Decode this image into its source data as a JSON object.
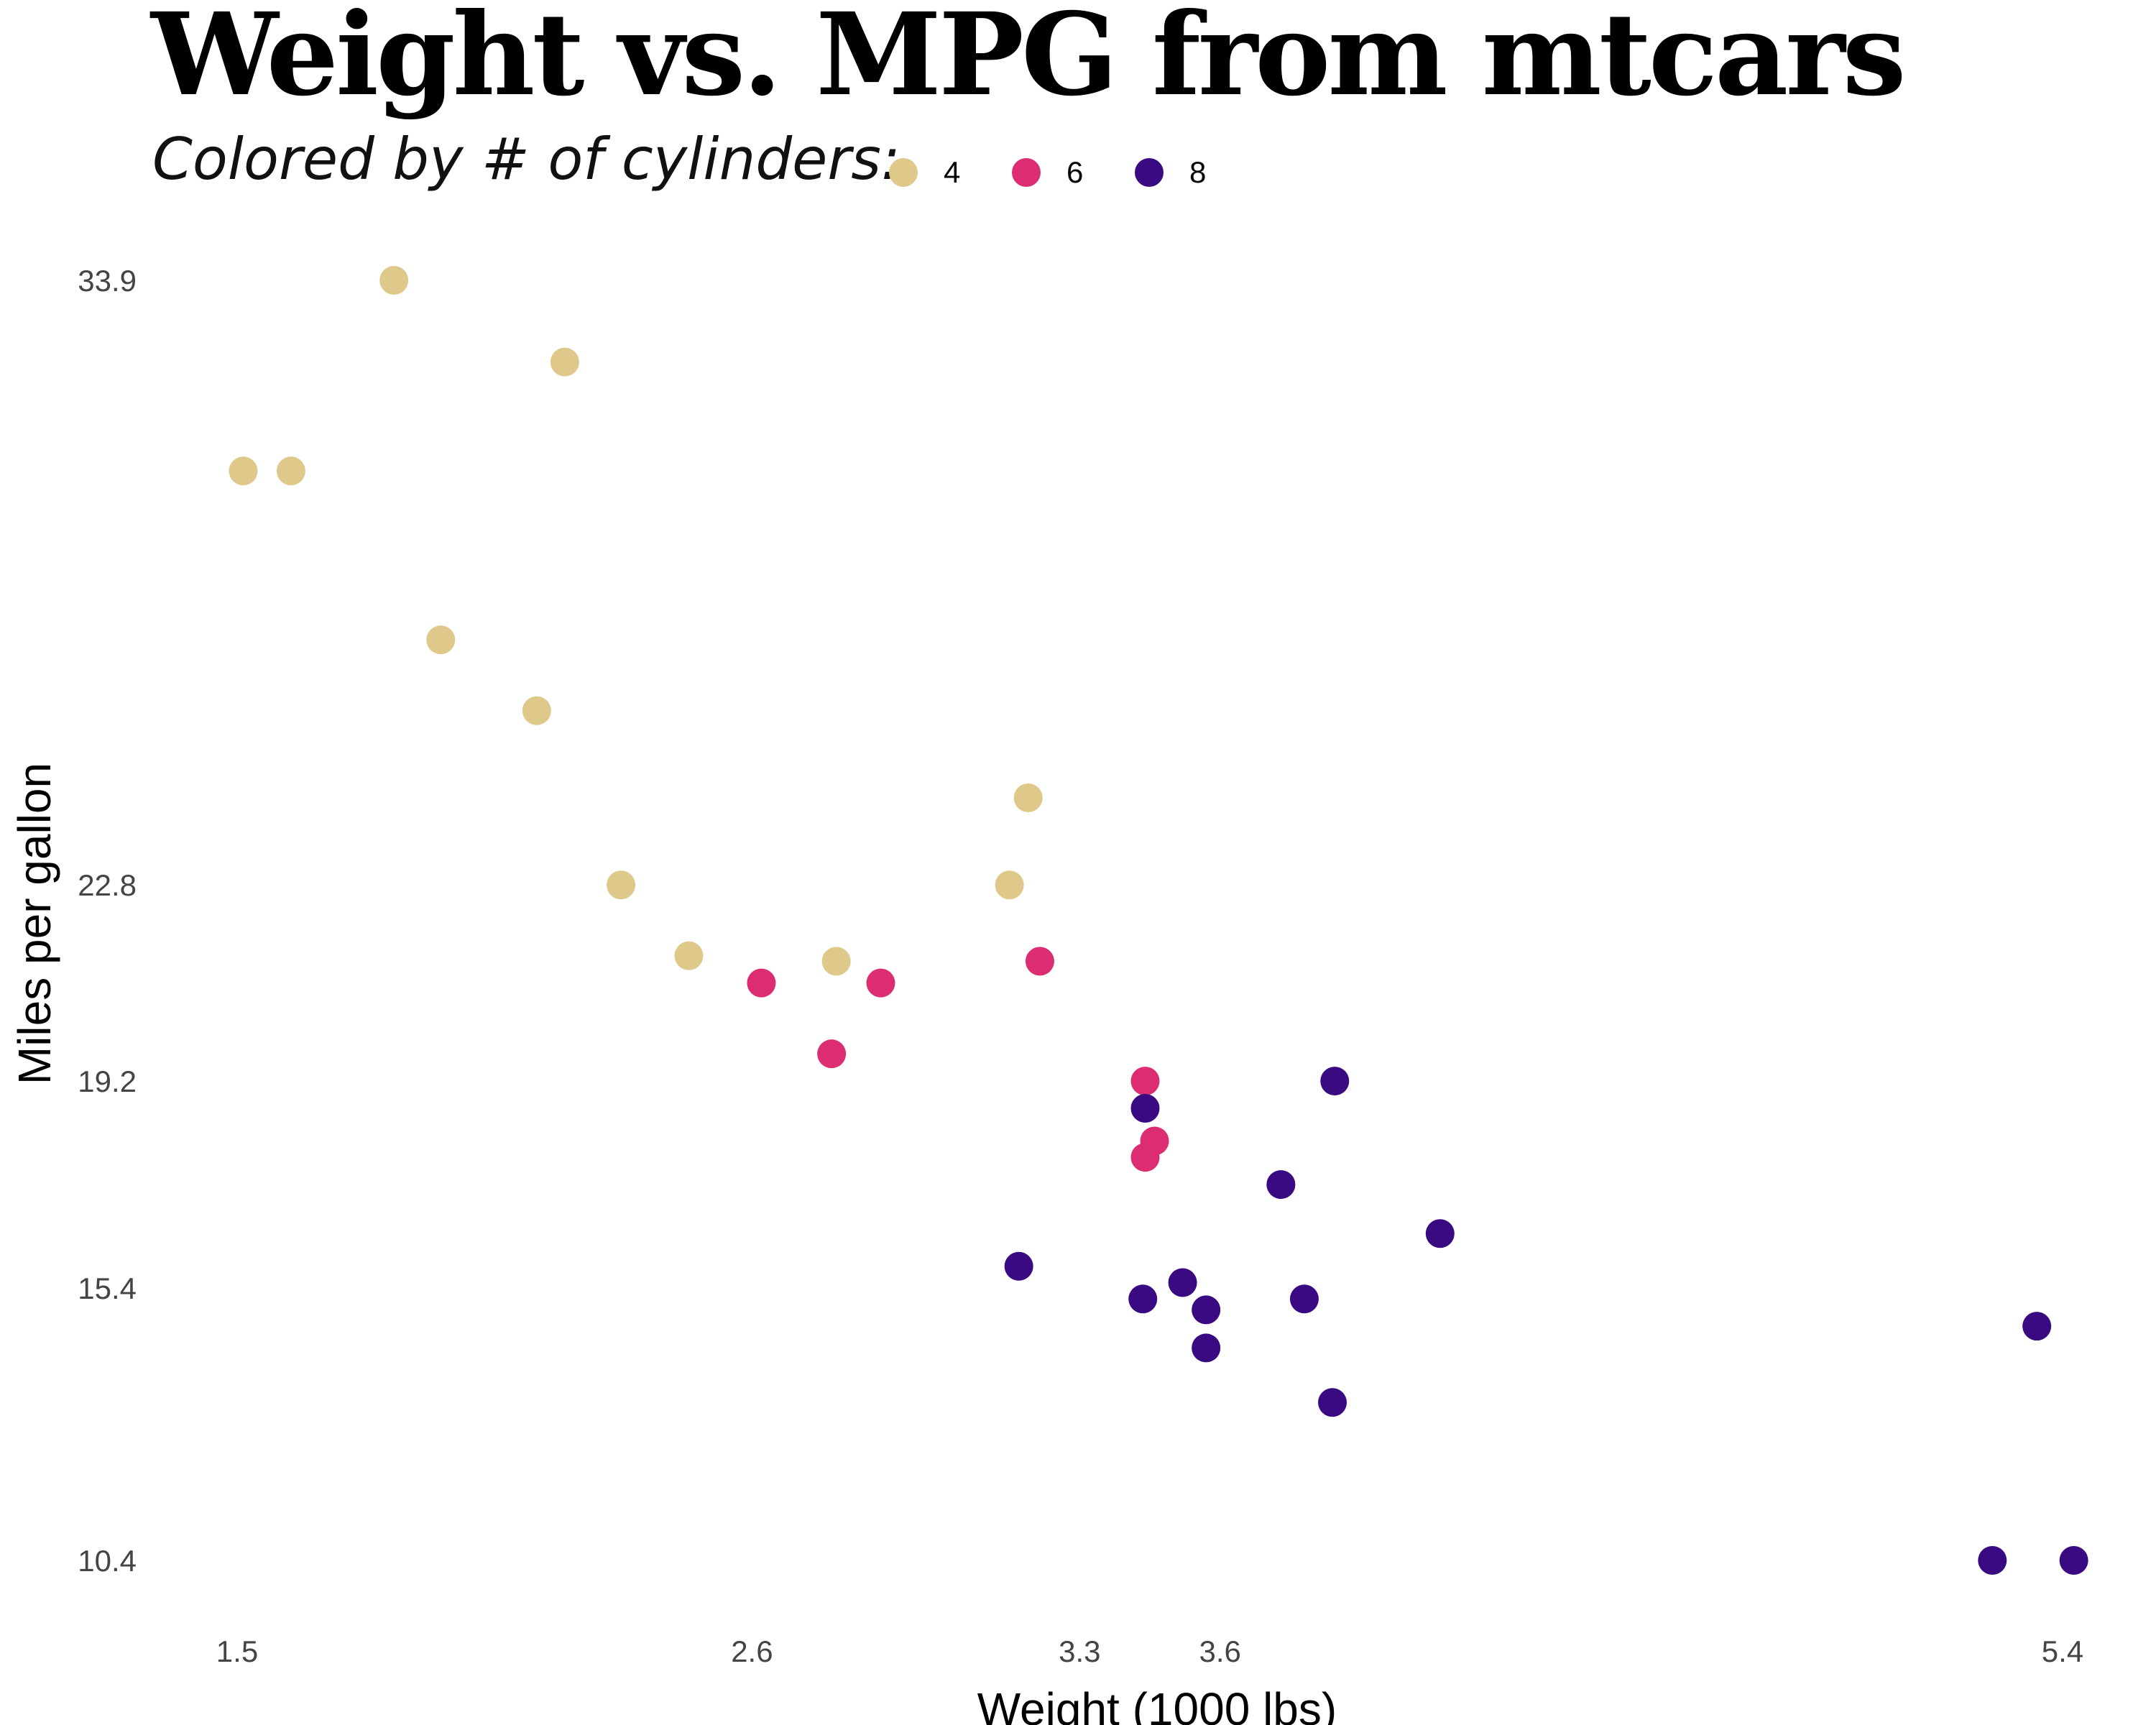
{
  "title": "Weight vs. MPG from mtcars",
  "subtitle": "Colored by # of cylinders:",
  "legend": [
    {
      "label": "4",
      "color": "#dfc98a"
    },
    {
      "label": "6",
      "color": "#dc2d73"
    },
    {
      "label": "8",
      "color": "#3a0a82"
    }
  ],
  "chart_data": {
    "type": "scatter",
    "title": "Weight vs. MPG from mtcars",
    "subtitle": "Colored by # of cylinders:",
    "xlabel": "Weight (1000 lbs)",
    "ylabel": "Miles per gallon",
    "xlim": [
      1.5,
      5.4
    ],
    "ylim": [
      10.4,
      33.9
    ],
    "x_ticks": [
      "1.5",
      "2.6",
      "3.3",
      "3.6",
      "5.4"
    ],
    "y_ticks": [
      "10.4",
      "15.4",
      "19.2",
      "22.8",
      "33.9"
    ],
    "grid": false,
    "legend_position": "top",
    "series": [
      {
        "name": "4",
        "color": "#dfc98a",
        "points": [
          {
            "x": 1.835,
            "y": 33.9
          },
          {
            "x": 2.2,
            "y": 32.4
          },
          {
            "x": 1.513,
            "y": 30.4
          },
          {
            "x": 1.615,
            "y": 30.4
          },
          {
            "x": 1.935,
            "y": 27.3
          },
          {
            "x": 2.14,
            "y": 26.0
          },
          {
            "x": 3.19,
            "y": 24.4
          },
          {
            "x": 2.32,
            "y": 22.8
          },
          {
            "x": 3.15,
            "y": 22.8
          },
          {
            "x": 2.465,
            "y": 21.5
          },
          {
            "x": 2.78,
            "y": 21.4
          }
        ]
      },
      {
        "name": "6",
        "color": "#dc2d73",
        "points": [
          {
            "x": 2.62,
            "y": 21.0
          },
          {
            "x": 2.875,
            "y": 21.0
          },
          {
            "x": 3.215,
            "y": 21.4
          },
          {
            "x": 2.77,
            "y": 19.7
          },
          {
            "x": 3.44,
            "y": 19.2
          },
          {
            "x": 3.46,
            "y": 18.1
          },
          {
            "x": 3.44,
            "y": 17.8
          }
        ]
      },
      {
        "name": "8",
        "color": "#3a0a82",
        "points": [
          {
            "x": 3.44,
            "y": 18.7
          },
          {
            "x": 3.845,
            "y": 19.2
          },
          {
            "x": 3.73,
            "y": 17.3
          },
          {
            "x": 4.07,
            "y": 16.4
          },
          {
            "x": 3.17,
            "y": 15.8
          },
          {
            "x": 3.52,
            "y": 15.5
          },
          {
            "x": 3.435,
            "y": 15.2
          },
          {
            "x": 3.78,
            "y": 15.2
          },
          {
            "x": 3.57,
            "y": 15.0
          },
          {
            "x": 3.57,
            "y": 14.3
          },
          {
            "x": 3.84,
            "y": 13.3
          },
          {
            "x": 5.345,
            "y": 14.7
          },
          {
            "x": 5.25,
            "y": 10.4
          },
          {
            "x": 5.424,
            "y": 10.4
          }
        ]
      }
    ]
  }
}
